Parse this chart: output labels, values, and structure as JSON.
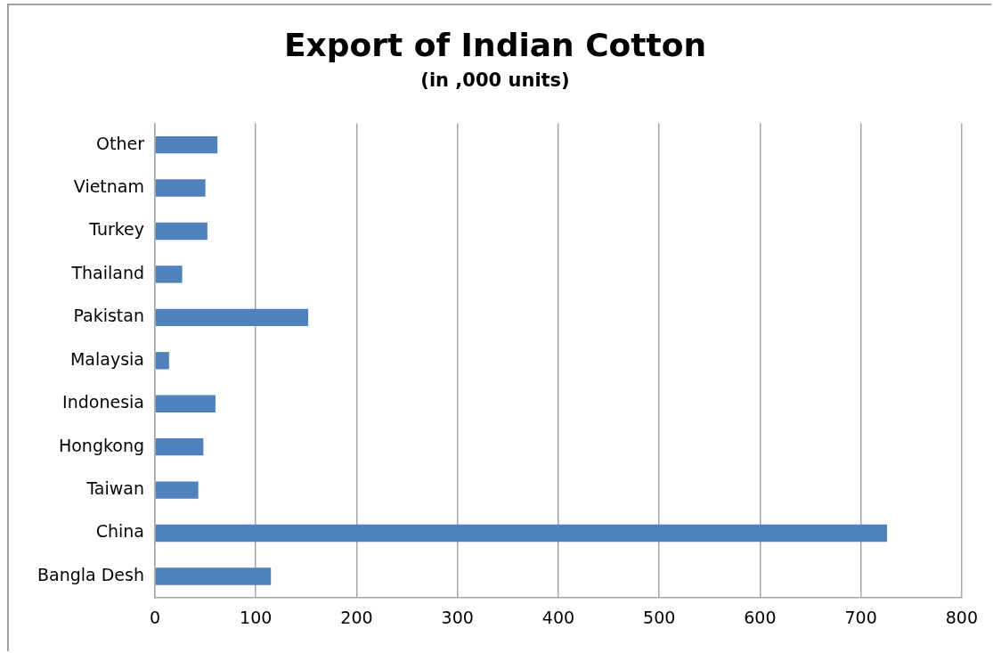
{
  "chart_data": {
    "type": "bar",
    "orientation": "horizontal",
    "title": "Export of Indian Cotton",
    "subtitle": "(in ,000 units)",
    "categories": [
      "Other",
      "Vietnam",
      "Turkey",
      "Thailand",
      "Pakistan",
      "Malaysia",
      "Indonesia",
      "Hongkong",
      "Taiwan",
      "China",
      "Bangla Desh"
    ],
    "values": [
      62,
      50,
      52,
      27,
      152,
      14,
      60,
      48,
      43,
      726,
      115
    ],
    "color": "#4f81bd",
    "xlim": [
      0,
      800
    ],
    "xticks": [
      0,
      100,
      200,
      300,
      400,
      500,
      600,
      700,
      800
    ],
    "grid": "x",
    "legend": false
  }
}
